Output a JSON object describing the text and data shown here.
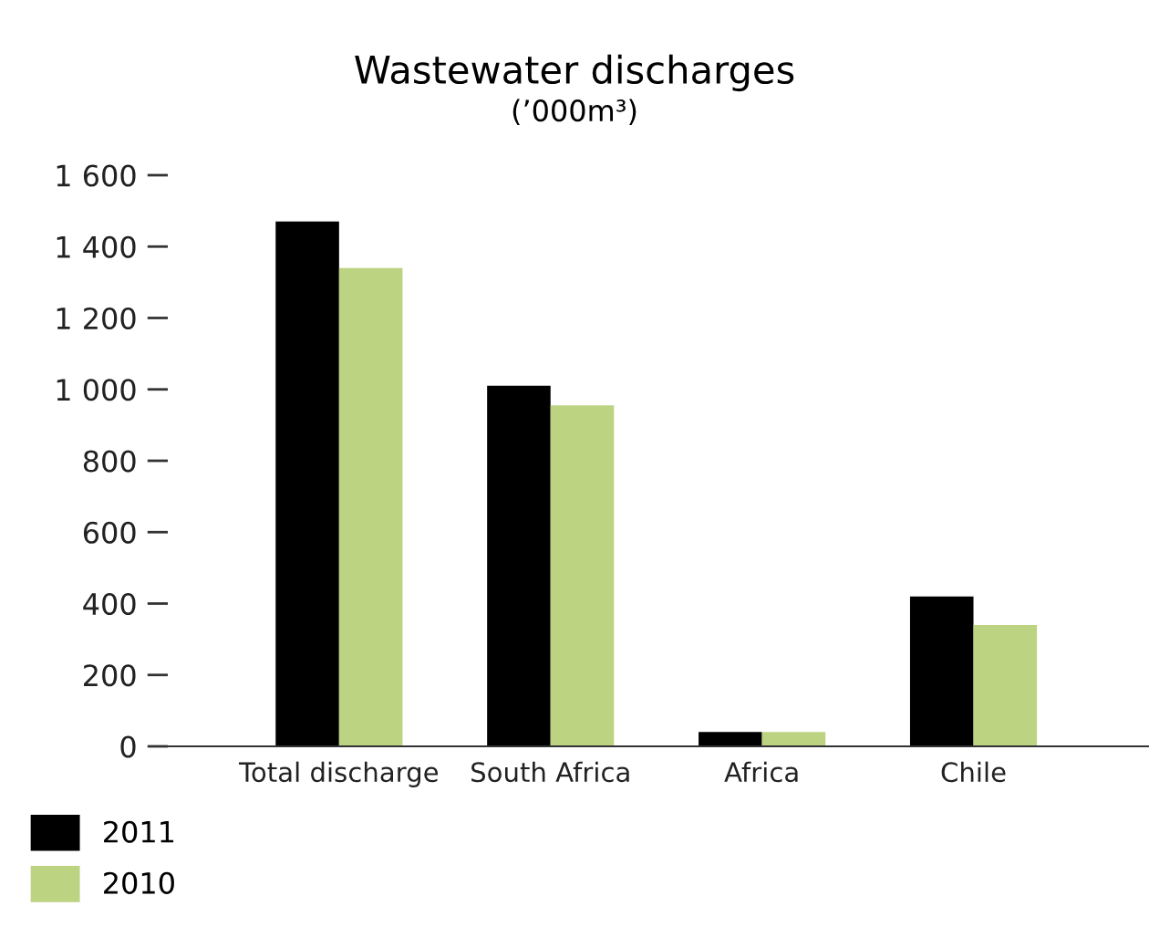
{
  "chart_data": {
    "type": "bar",
    "title": "Wastewater discharges",
    "subtitle": "(’000m³)",
    "categories": [
      "Total discharge",
      "South Africa",
      "Africa",
      "Chile"
    ],
    "series": [
      {
        "name": "2011",
        "color": "#000000",
        "values": [
          1470,
          1010,
          40,
          420
        ]
      },
      {
        "name": "2010",
        "color": "#bcd382",
        "values": [
          1340,
          955,
          40,
          340
        ]
      }
    ],
    "ylim": [
      0,
      1600
    ],
    "yticks": [
      0,
      200,
      400,
      600,
      800,
      {
        "value": 1000,
        "label": "1 000"
      },
      {
        "value": 1200,
        "label": "1 200"
      },
      {
        "value": 1400,
        "label": "1 400"
      },
      {
        "value": 1600,
        "label": "1 600"
      }
    ],
    "grid": false,
    "legend": "bottom left"
  }
}
